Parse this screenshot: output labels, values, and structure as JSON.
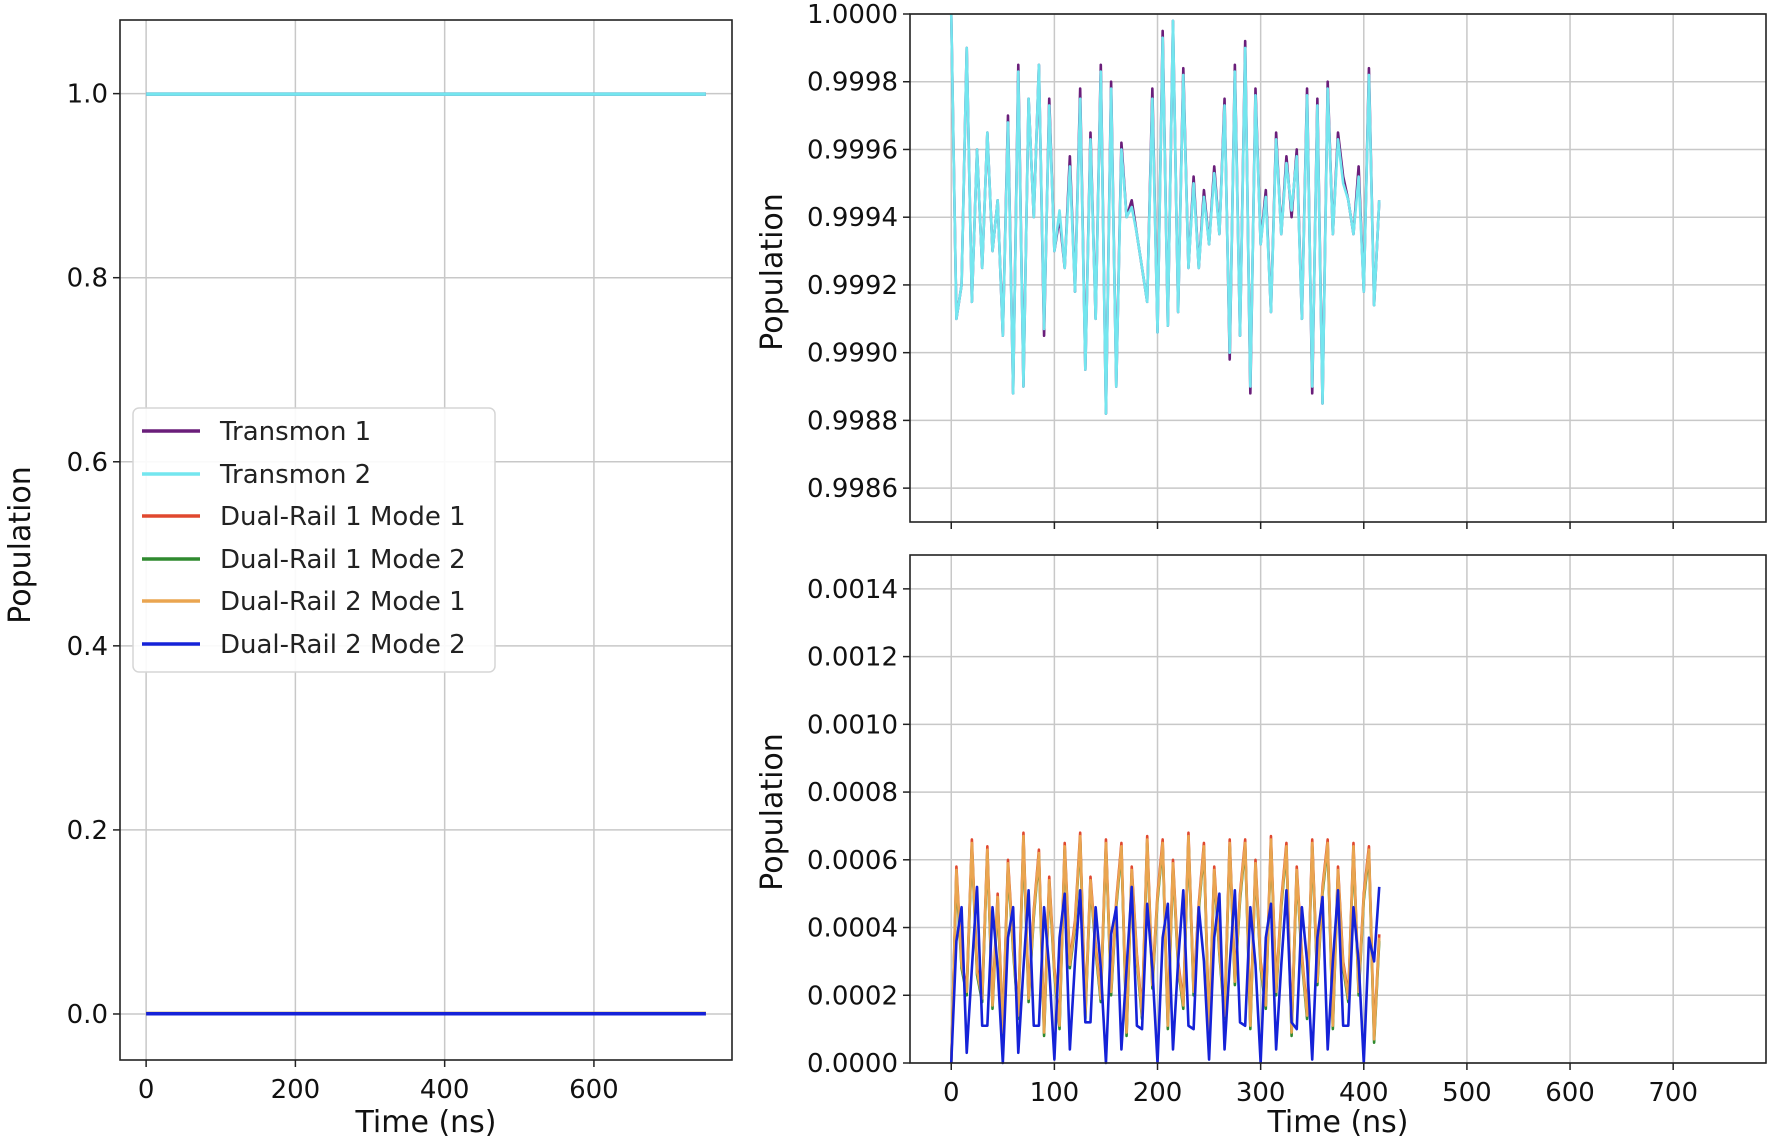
{
  "colors": {
    "transmon1": "#6a1e7a",
    "transmon2": "#74e6ef",
    "dr1m1": "#e0482f",
    "dr1m2": "#2f8a2f",
    "dr2m1": "#eaa550",
    "dr2m2": "#1522d8"
  },
  "chart_data": [
    {
      "id": "overview",
      "type": "line",
      "xlabel": "Time (ns)",
      "ylabel": "Population",
      "xlim": [
        -35,
        785
      ],
      "ylim": [
        -0.05,
        1.08
      ],
      "xticks": [
        0,
        200,
        400,
        600
      ],
      "yticks": [
        0.0,
        0.2,
        0.4,
        0.6,
        0.8,
        1.0
      ],
      "ytick_labels": [
        "0.0",
        "0.2",
        "0.4",
        "0.6",
        "0.8",
        "1.0"
      ],
      "grid": true,
      "legend_position": "center-left",
      "legend": [
        "Transmon 1",
        "Transmon 2",
        "Dual-Rail 1 Mode 1",
        "Dual-Rail 1 Mode 2",
        "Dual-Rail 2 Mode 1",
        "Dual-Rail 2 Mode 2"
      ],
      "series": [
        {
          "name": "Transmon 1",
          "color_key": "transmon1",
          "x": [
            0,
            750
          ],
          "values": [
            0.9994,
            0.9994
          ]
        },
        {
          "name": "Transmon 2",
          "color_key": "transmon2",
          "x": [
            0,
            750
          ],
          "values": [
            0.9994,
            0.9994
          ]
        },
        {
          "name": "Dual-Rail 1 Mode 1",
          "color_key": "dr1m1",
          "x": [
            0,
            750
          ],
          "values": [
            0.0004,
            0.0004
          ]
        },
        {
          "name": "Dual-Rail 1 Mode 2",
          "color_key": "dr1m2",
          "x": [
            0,
            750
          ],
          "values": [
            0.0004,
            0.0004
          ]
        },
        {
          "name": "Dual-Rail 2 Mode 1",
          "color_key": "dr2m1",
          "x": [
            0,
            750
          ],
          "values": [
            0.0004,
            0.0004
          ]
        },
        {
          "name": "Dual-Rail 2 Mode 2",
          "color_key": "dr2m2",
          "x": [
            0,
            750
          ],
          "values": [
            0.0003,
            0.0003
          ]
        }
      ]
    },
    {
      "id": "transmon-zoom",
      "type": "line",
      "xlabel": "",
      "ylabel": "Population",
      "xlim": [
        -40,
        790
      ],
      "ylim": [
        0.9985,
        1.0
      ],
      "xticks": [
        0,
        100,
        200,
        300,
        400,
        500,
        600,
        700
      ],
      "yticks": [
        0.9986,
        0.9988,
        0.999,
        0.9992,
        0.9994,
        0.9996,
        0.9998,
        1.0
      ],
      "ytick_labels": [
        "0.9986",
        "0.9988",
        "0.9990",
        "0.9992",
        "0.9994",
        "0.9996",
        "0.9998",
        "1.0000"
      ],
      "grid": true,
      "x_step": 5,
      "series": [
        {
          "name": "Transmon 1",
          "color_key": "transmon1",
          "values": [
            1.0,
            0.9991,
            0.9992,
            0.9999,
            0.99915,
            0.9996,
            0.99925,
            0.99965,
            0.9993,
            0.99945,
            0.99905,
            0.9997,
            0.99888,
            0.99985,
            0.9989,
            0.99975,
            0.9994,
            0.99985,
            0.99905,
            0.99975,
            0.9993,
            0.9994,
            0.99925,
            0.99958,
            0.99918,
            0.99978,
            0.99895,
            0.99965,
            0.9991,
            0.99985,
            0.99882,
            0.9998,
            0.9989,
            0.99962,
            0.9994,
            0.99945,
            0.99935,
            0.99925,
            0.99915,
            0.99978,
            0.99906,
            0.99995,
            0.99908,
            0.99998,
            0.99912,
            0.99984,
            0.99925,
            0.99952,
            0.99925,
            0.99948,
            0.99932,
            0.99955,
            0.99935,
            0.99975,
            0.99898,
            0.99985,
            0.99905,
            0.99992,
            0.99888,
            0.99978,
            0.99932,
            0.99948,
            0.99912,
            0.99965,
            0.99935,
            0.99958,
            0.9994,
            0.9996,
            0.9991,
            0.99978,
            0.99888,
            0.99975,
            0.99885,
            0.9998,
            0.99935,
            0.99965,
            0.99952,
            0.99945,
            0.99935,
            0.99955,
            0.99918,
            0.99984,
            0.99914,
            0.99945
          ]
        },
        {
          "name": "Transmon 2",
          "color_key": "transmon2",
          "values": [
            1.0,
            0.9991,
            0.9992,
            0.9999,
            0.99915,
            0.9996,
            0.99925,
            0.99965,
            0.9993,
            0.99945,
            0.99905,
            0.99968,
            0.99888,
            0.99983,
            0.9989,
            0.99975,
            0.9994,
            0.99985,
            0.99907,
            0.99973,
            0.9993,
            0.99942,
            0.99925,
            0.99955,
            0.99918,
            0.99975,
            0.99895,
            0.99963,
            0.9991,
            0.99983,
            0.99882,
            0.99978,
            0.9989,
            0.9996,
            0.9994,
            0.99943,
            0.99935,
            0.99925,
            0.99915,
            0.99975,
            0.99906,
            0.99993,
            0.99908,
            0.99998,
            0.99912,
            0.99982,
            0.99925,
            0.9995,
            0.99925,
            0.99946,
            0.99932,
            0.99953,
            0.99935,
            0.99973,
            0.999,
            0.99983,
            0.99905,
            0.9999,
            0.9989,
            0.99976,
            0.99932,
            0.99946,
            0.99912,
            0.99963,
            0.99935,
            0.99956,
            0.99942,
            0.99958,
            0.9991,
            0.99976,
            0.9989,
            0.99973,
            0.99885,
            0.99978,
            0.99935,
            0.99963,
            0.9995,
            0.99945,
            0.99935,
            0.99952,
            0.99918,
            0.99982,
            0.99914,
            0.99945
          ]
        }
      ]
    },
    {
      "id": "dual-rail-zoom",
      "type": "line",
      "xlabel": "Time (ns)",
      "ylabel": "Population",
      "xlim": [
        -40,
        790
      ],
      "ylim": [
        0.0,
        0.0015
      ],
      "xticks": [
        0,
        100,
        200,
        300,
        400,
        500,
        600,
        700
      ],
      "yticks": [
        0.0,
        0.0002,
        0.0004,
        0.0006,
        0.0008,
        0.001,
        0.0012,
        0.0014
      ],
      "ytick_labels": [
        "0.0000",
        "0.0002",
        "0.0004",
        "0.0006",
        "0.0008",
        "0.0010",
        "0.0012",
        "0.0014"
      ],
      "grid": true,
      "x_step": 5,
      "series": [
        {
          "name": "Dual-Rail 1 Mode 1",
          "color_key": "dr1m1",
          "values": [
            0.0,
            0.00058,
            0.0003,
            0.00022,
            0.00066,
            0.00028,
            0.0002,
            0.00064,
            0.00018,
            0.0005,
            0.0001,
            0.0006,
            0.00035,
            0.00015,
            0.00068,
            0.0002,
            0.00045,
            0.00063,
            0.0001,
            0.00055,
            0.00028,
            0.00012,
            0.00065,
            0.0003,
            0.00042,
            0.00068,
            0.00015,
            0.00055,
            0.00035,
            0.0002,
            0.00066,
            0.00022,
            0.00048,
            0.00065,
            0.0001,
            0.00058,
            0.00032,
            0.00015,
            0.00067,
            0.00024,
            0.0005,
            0.00066,
            0.00012,
            0.0006,
            0.0003,
            0.00018,
            0.00068,
            0.00022,
            0.00047,
            0.00065,
            0.0001,
            0.00058,
            0.00034,
            0.00015,
            0.00066,
            0.00025,
            0.0005,
            0.00066,
            0.00012,
            0.0006,
            0.0003,
            0.00018,
            0.00067,
            0.00022,
            0.00048,
            0.00065,
            0.0001,
            0.00058,
            0.00032,
            0.00015,
            0.00066,
            0.00025,
            0.00052,
            0.00066,
            0.00012,
            0.00058,
            0.0003,
            0.0002,
            0.00065,
            0.00022,
            0.0005,
            0.00064,
            8e-05,
            0.00038
          ]
        },
        {
          "name": "Dual-Rail 1 Mode 2",
          "color_key": "dr1m2",
          "values": [
            0.0,
            0.00055,
            0.00028,
            0.0002,
            0.00064,
            0.00026,
            0.00018,
            0.00062,
            0.00016,
            0.00048,
            8e-05,
            0.00058,
            0.00033,
            0.00013,
            0.00066,
            0.00018,
            0.00043,
            0.00061,
            8e-05,
            0.00053,
            0.00026,
            0.0001,
            0.00063,
            0.00028,
            0.0004,
            0.00066,
            0.00013,
            0.00053,
            0.00033,
            0.00018,
            0.00064,
            0.0002,
            0.00046,
            0.00063,
            8e-05,
            0.00056,
            0.0003,
            0.00013,
            0.00065,
            0.00022,
            0.00048,
            0.00064,
            0.0001,
            0.00058,
            0.00028,
            0.00016,
            0.00066,
            0.0002,
            0.00045,
            0.00063,
            8e-05,
            0.00056,
            0.00032,
            0.00013,
            0.00064,
            0.00023,
            0.00048,
            0.00064,
            0.0001,
            0.00058,
            0.00028,
            0.00016,
            0.00065,
            0.0002,
            0.00046,
            0.00063,
            8e-05,
            0.00056,
            0.0003,
            0.00013,
            0.00064,
            0.00023,
            0.0005,
            0.00064,
            0.0001,
            0.00056,
            0.00028,
            0.00018,
            0.00063,
            0.0002,
            0.00048,
            0.00062,
            6e-05,
            0.00036
          ]
        },
        {
          "name": "Dual-Rail 2 Mode 1",
          "color_key": "dr2m1",
          "values": [
            0.0,
            0.00057,
            0.00029,
            0.00021,
            0.00065,
            0.00027,
            0.00019,
            0.00063,
            0.00017,
            0.00049,
            9e-05,
            0.00059,
            0.00034,
            0.00014,
            0.00067,
            0.00019,
            0.00044,
            0.00062,
            9e-05,
            0.00054,
            0.00027,
            0.00011,
            0.00064,
            0.00029,
            0.00041,
            0.00067,
            0.00014,
            0.00054,
            0.00034,
            0.00019,
            0.00065,
            0.00021,
            0.00047,
            0.00064,
            9e-05,
            0.00057,
            0.00031,
            0.00014,
            0.00066,
            0.00023,
            0.00049,
            0.00065,
            0.00011,
            0.00059,
            0.00029,
            0.00017,
            0.00067,
            0.00021,
            0.00046,
            0.00064,
            9e-05,
            0.00057,
            0.00033,
            0.00014,
            0.00065,
            0.00024,
            0.00049,
            0.00065,
            0.00011,
            0.00059,
            0.00029,
            0.00017,
            0.00066,
            0.00021,
            0.00047,
            0.00064,
            9e-05,
            0.00057,
            0.00031,
            0.00014,
            0.00065,
            0.00024,
            0.00051,
            0.00065,
            0.00011,
            0.00057,
            0.00029,
            0.00019,
            0.00064,
            0.00021,
            0.00049,
            0.00063,
            7e-05,
            0.00037
          ]
        },
        {
          "name": "Dual-Rail 2 Mode 2",
          "color_key": "dr2m2",
          "values": [
            0.0,
            0.00036,
            0.00046,
            3e-05,
            0.00028,
            0.00052,
            0.00011,
            0.00011,
            0.00046,
            0.00028,
            0.0,
            0.00037,
            0.00046,
            3e-05,
            0.00028,
            0.00051,
            0.00011,
            0.00011,
            0.00046,
            0.00028,
            1e-05,
            0.00037,
            0.0005,
            4e-05,
            0.0003,
            0.00051,
            0.00012,
            0.00012,
            0.00046,
            0.00028,
            0.0,
            0.00038,
            0.00046,
            4e-05,
            0.00028,
            0.00052,
            0.00011,
            0.0001,
            0.00047,
            0.00028,
            0.0,
            0.00037,
            0.00047,
            4e-05,
            0.0003,
            0.00051,
            0.00011,
            0.0001,
            0.00046,
            0.0003,
            1e-05,
            0.00037,
            0.0005,
            4e-05,
            0.00029,
            0.00051,
            0.00012,
            0.00011,
            0.00046,
            0.00029,
            0.0,
            0.00037,
            0.00047,
            4e-05,
            0.00029,
            0.00051,
            0.00012,
            0.0001,
            0.00046,
            0.0003,
            1e-05,
            0.00037,
            0.00049,
            4e-05,
            0.0003,
            0.00051,
            0.00011,
            0.00011,
            0.00046,
            0.0003,
            0.0,
            0.00037,
            0.0003,
            0.00052
          ]
        }
      ]
    }
  ]
}
